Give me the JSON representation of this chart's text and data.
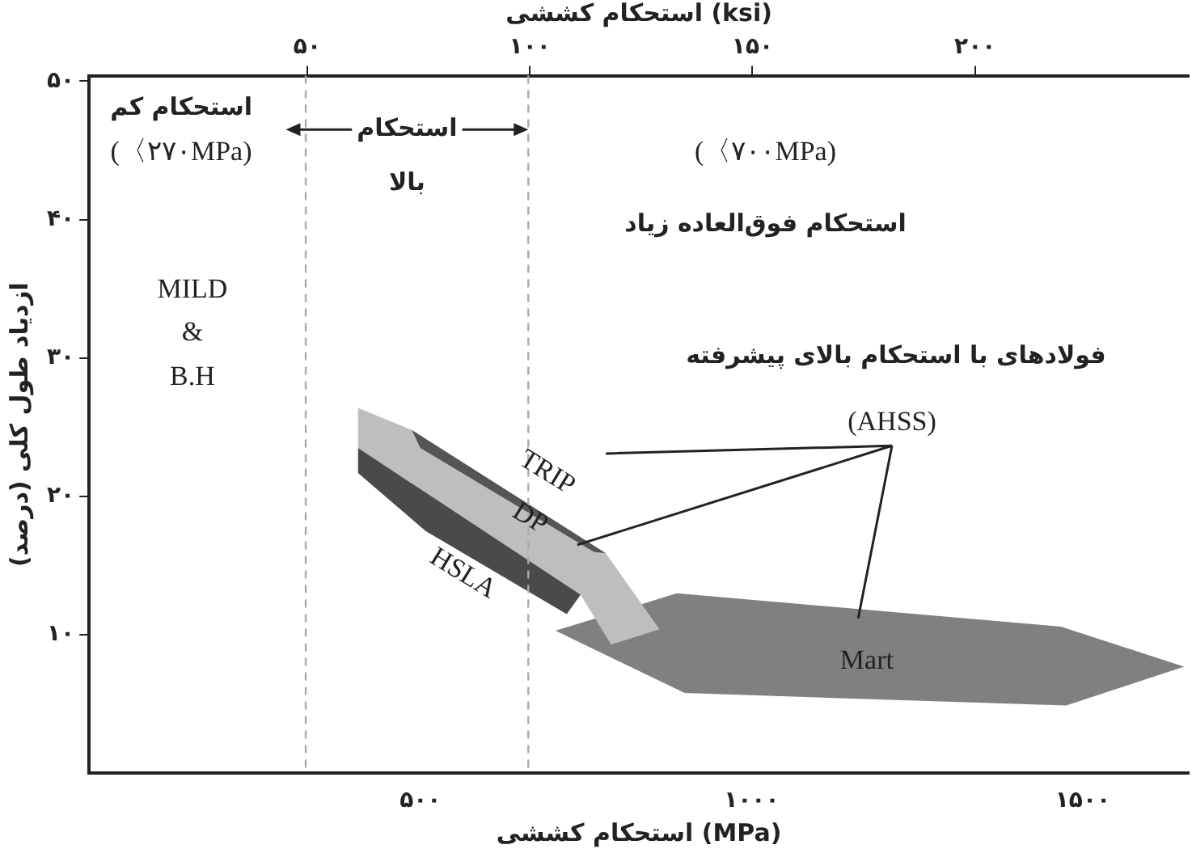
{
  "chart_data": {
    "type": "area",
    "xlabel": "استحکام کششی (MPa)",
    "x2label": "استحکام کششی (ksi)",
    "ylabel": "ازدیاد طول کلی (درصد)",
    "xlim": [
      0,
      1660
    ],
    "xticks": [
      {
        "value": 500,
        "label": "۵۰۰"
      },
      {
        "value": 1000,
        "label": "۱۰۰۰"
      },
      {
        "value": 1500,
        "label": "۱۵۰۰"
      }
    ],
    "x2lim": [
      1,
      248
    ],
    "x2ticks": [
      {
        "value": 50,
        "label": "۵۰"
      },
      {
        "value": 100,
        "label": "۱۰۰"
      },
      {
        "value": 150,
        "label": "۱۵۰"
      },
      {
        "value": 200,
        "label": "۲۰۰"
      }
    ],
    "ylim": [
      0,
      50.4
    ],
    "yticks": [
      {
        "value": 10,
        "label": "۱۰"
      },
      {
        "value": 20,
        "label": "۲۰"
      },
      {
        "value": 30,
        "label": "۳۰"
      },
      {
        "value": 40,
        "label": "۴۰"
      },
      {
        "value": 50,
        "label": "۵۰"
      }
    ],
    "grid": false,
    "legend": false,
    "marker": "none",
    "ref_lines": [
      {
        "axis": "x",
        "value": 327,
        "color": "#aaaaaa",
        "line_style": "dashed"
      },
      {
        "axis": "x",
        "value": 663,
        "color": "#aaaaaa",
        "line_style": "dashed"
      }
    ],
    "series": [
      {
        "name": "Mart",
        "color": "#808080",
        "x": [
          704,
          887,
          1467,
          1653,
          1475,
          899,
          704
        ],
        "values": [
          10.3,
          13,
          10.6,
          7.7,
          4.9,
          5.8,
          10.3
        ]
      },
      {
        "name": "DP",
        "color": "#bebebe",
        "x": [
          406,
          487,
          780,
          861,
          788,
          742,
          406,
          406
        ],
        "values": [
          26.4,
          24.8,
          15.9,
          10.4,
          9.3,
          12.9,
          23.5,
          26.4
        ]
      },
      {
        "name": "TRIP",
        "color": "#555555",
        "x": [
          487,
          780,
          762,
          500,
          487
        ],
        "values": [
          24.8,
          15.9,
          16,
          23.5,
          24.8
        ]
      },
      {
        "name": "HSLA",
        "color": "#4a4a4a",
        "x": [
          406,
          742,
          721,
          508,
          406,
          406
        ],
        "values": [
          23.5,
          12.9,
          11.5,
          17.5,
          21.7,
          23.5
        ]
      }
    ],
    "annotations": [
      "استحکام کم",
      "(〈۲۷۰MPa)",
      {
        "text": "استحکام",
        "x": 663,
        "y": 46.5
      },
      "بالا",
      "(〈۷۰۰MPa)",
      "استحکام فوق‌العاده زیاد",
      "MILD",
      "&",
      "B.H",
      "فولادهای با استحکام بالای پیشرفته",
      {
        "text": "(AHSS)",
        "x": 737,
        "y": 16.5
      }
    ]
  }
}
